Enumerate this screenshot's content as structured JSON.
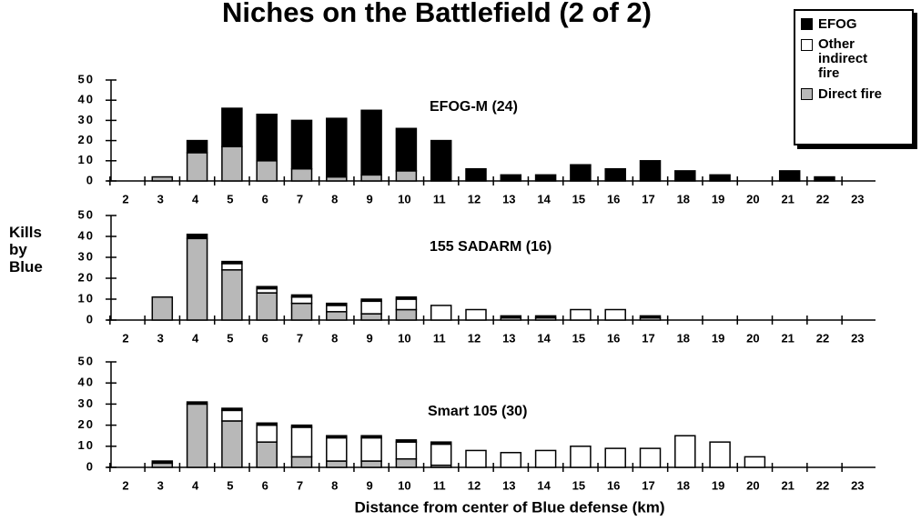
{
  "chart_data": [
    {
      "type": "bar",
      "stacked": true,
      "title": "Niches on the Battlefield (2 of 2)",
      "annotation": "EFOG-M (24)",
      "categories": [
        "2",
        "3",
        "4",
        "5",
        "6",
        "7",
        "8",
        "9",
        "10",
        "11",
        "12",
        "13",
        "14",
        "15",
        "16",
        "17",
        "18",
        "19",
        "20",
        "21",
        "22",
        "23"
      ],
      "series": [
        {
          "name": "Direct fire",
          "color": "#b8b8b8",
          "values": [
            0,
            2,
            14,
            17,
            10,
            6,
            2,
            3,
            5,
            0,
            0,
            0,
            0,
            0,
            0,
            0,
            0,
            0,
            0,
            0,
            0,
            0
          ]
        },
        {
          "name": "Other indirect fire",
          "color": "#ffffff",
          "values": [
            0,
            0,
            0,
            0,
            0,
            0,
            0,
            0,
            0,
            0,
            0,
            0,
            0,
            0,
            0,
            0,
            0,
            0,
            0,
            0,
            0,
            0
          ]
        },
        {
          "name": "EFOG",
          "color": "#000000",
          "values": [
            0,
            0,
            6,
            19,
            23,
            24,
            29,
            32,
            21,
            20,
            6,
            3,
            3,
            8,
            6,
            10,
            5,
            3,
            0,
            5,
            2,
            0
          ]
        }
      ],
      "ylim": [
        0,
        50
      ],
      "yticks": [
        0,
        10,
        20,
        30,
        40,
        50
      ]
    },
    {
      "type": "bar",
      "stacked": true,
      "annotation": "155 SADARM (16)",
      "y_label": "Kills by Blue",
      "categories": [
        "2",
        "3",
        "4",
        "5",
        "6",
        "7",
        "8",
        "9",
        "10",
        "11",
        "12",
        "13",
        "14",
        "15",
        "16",
        "17",
        "18",
        "19",
        "20",
        "21",
        "22",
        "23"
      ],
      "series": [
        {
          "name": "Direct fire",
          "color": "#b8b8b8",
          "values": [
            0,
            11,
            39,
            24,
            13,
            8,
            4,
            3,
            5,
            0,
            0,
            0,
            0,
            0,
            0,
            0,
            0,
            0,
            0,
            0,
            0,
            0
          ]
        },
        {
          "name": "Other indirect fire",
          "color": "#ffffff",
          "values": [
            0,
            0,
            0,
            3,
            2,
            3,
            3,
            6,
            5,
            7,
            5,
            1,
            1,
            5,
            5,
            1,
            0,
            0,
            0,
            0,
            0,
            0
          ]
        },
        {
          "name": "EFOG",
          "color": "#000000",
          "values": [
            0,
            0,
            2,
            1,
            1,
            1,
            1,
            1,
            1,
            0,
            0,
            1,
            1,
            0,
            0,
            1,
            0,
            0,
            0,
            0,
            0,
            0
          ]
        }
      ],
      "ylim": [
        0,
        50
      ],
      "yticks": [
        0,
        10,
        20,
        30,
        40,
        50
      ]
    },
    {
      "type": "bar",
      "stacked": true,
      "annotation": "Smart 105 (30)",
      "x_label": "Distance from center of Blue defense (km)",
      "categories": [
        "2",
        "3",
        "4",
        "5",
        "6",
        "7",
        "8",
        "9",
        "10",
        "11",
        "12",
        "13",
        "14",
        "15",
        "16",
        "17",
        "18",
        "19",
        "20",
        "21",
        "22",
        "23"
      ],
      "series": [
        {
          "name": "Direct fire",
          "color": "#b8b8b8",
          "values": [
            0,
            2,
            30,
            22,
            12,
            5,
            3,
            3,
            4,
            1,
            0,
            0,
            0,
            0,
            0,
            0,
            0,
            0,
            0,
            0,
            0,
            0
          ]
        },
        {
          "name": "Other indirect fire",
          "color": "#ffffff",
          "values": [
            0,
            0,
            0,
            5,
            8,
            14,
            11,
            11,
            8,
            10,
            8,
            7,
            8,
            10,
            9,
            9,
            15,
            12,
            5,
            0,
            0,
            0
          ]
        },
        {
          "name": "EFOG",
          "color": "#000000",
          "values": [
            0,
            1,
            1,
            1,
            1,
            1,
            1,
            1,
            1,
            1,
            0,
            0,
            0,
            0,
            0,
            0,
            0,
            0,
            0,
            0,
            0,
            0
          ]
        }
      ],
      "ylim": [
        0,
        50
      ],
      "yticks": [
        0,
        10,
        20,
        30,
        40,
        50
      ]
    }
  ]
}
